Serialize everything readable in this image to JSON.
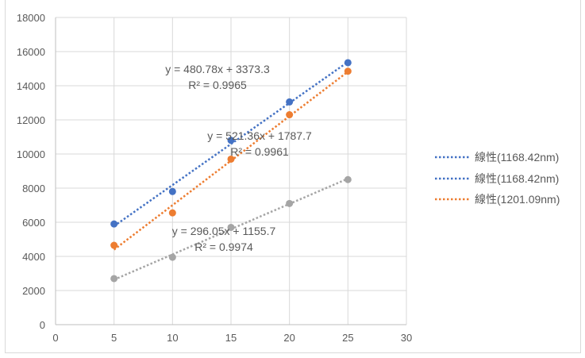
{
  "chart_data": {
    "type": "scatter",
    "title": "",
    "xlabel": "",
    "ylabel": "",
    "xlim": [
      0,
      30
    ],
    "ylim": [
      0,
      18000
    ],
    "xticks": [
      "0",
      "5",
      "10",
      "15",
      "20",
      "25",
      "30"
    ],
    "yticks": [
      "0",
      "2000",
      "4000",
      "6000",
      "8000",
      "10000",
      "12000",
      "14000",
      "16000",
      "18000"
    ],
    "grid": "both",
    "legend_position": "right",
    "series": [
      {
        "color": "#4472c4",
        "x": [
          5,
          10,
          15,
          20,
          25
        ],
        "y": [
          5900,
          7800,
          10800,
          13050,
          15350
        ]
      },
      {
        "color": "#ed7d31",
        "x": [
          5,
          10,
          15,
          20,
          25
        ],
        "y": [
          4650,
          6550,
          9700,
          12300,
          14850
        ]
      },
      {
        "color": "#a5a5a5",
        "x": [
          5,
          10,
          15,
          20,
          25
        ],
        "y": [
          2700,
          3950,
          5700,
          7100,
          8500
        ]
      }
    ],
    "trendlines": [
      {
        "color": "#4472c4",
        "slope": 480.78,
        "intercept": 3373.3,
        "x_range": [
          5,
          25
        ]
      },
      {
        "color": "#ed7d31",
        "slope": 521.36,
        "intercept": 1787.7,
        "x_range": [
          5,
          25
        ]
      },
      {
        "color": "#a5a5a5",
        "slope": 296.05,
        "intercept": 1155.7,
        "x_range": [
          5,
          25
        ]
      }
    ],
    "annotations": [
      {
        "equation": "y = 480.78x + 3373.3",
        "r2": "R² = 0.9965"
      },
      {
        "equation": "y = 521.36x + 1787.7",
        "r2": "R² = 0.9961"
      },
      {
        "equation": "y = 296.05x + 1155.7",
        "r2": "R² = 0.9974"
      }
    ],
    "legend": [
      {
        "label": "線性(1168.42nm)",
        "color": "#4472c4"
      },
      {
        "label": "線性(1168.42nm)",
        "color": "#4472c4"
      },
      {
        "label": "線性(1201.09nm)",
        "color": "#ed7d31"
      }
    ]
  }
}
